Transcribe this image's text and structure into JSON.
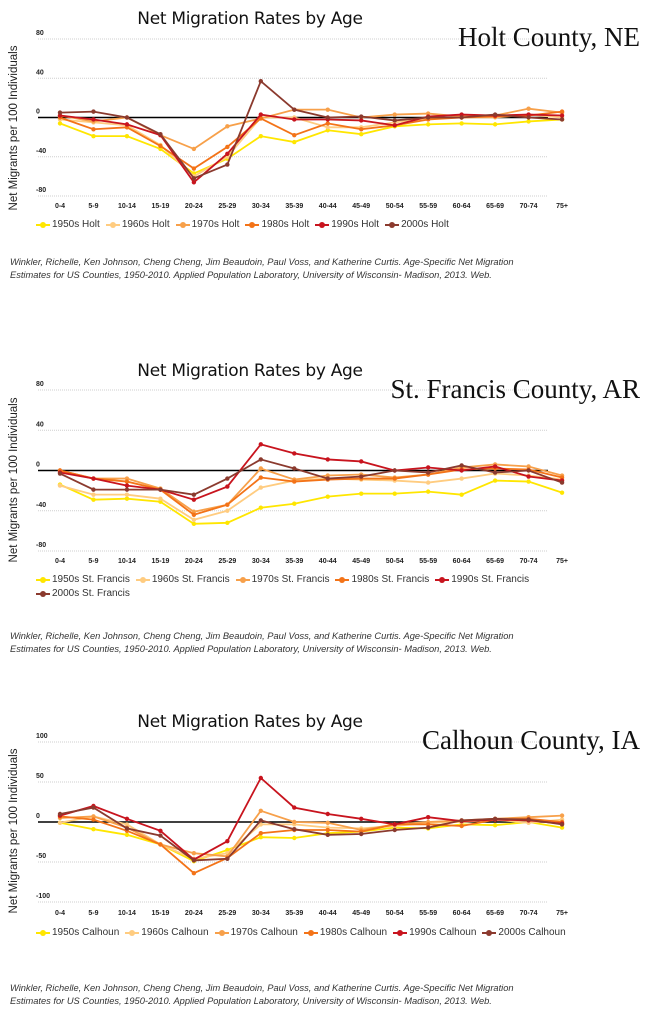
{
  "chart_data": [
    {
      "type": "line",
      "title": "Net Migration Rates by Age",
      "annotation": "Holt County, NE",
      "ylabel": "Net Migrants per 100 Individuals",
      "xlabel": "",
      "ylim": [
        -80,
        80
      ],
      "yticks": [
        "80",
        "40",
        "0",
        "-40",
        "-80"
      ],
      "ytick_values": [
        80,
        40,
        0,
        -40,
        -80
      ],
      "grid": true,
      "legend": "bottom",
      "categories": [
        "0-4",
        "5-9",
        "10-14",
        "15-19",
        "20-24",
        "25-29",
        "30-34",
        "35-39",
        "40-44",
        "45-49",
        "50-54",
        "55-59",
        "60-64",
        "65-69",
        "70-74",
        "75+"
      ],
      "series": [
        {
          "name": "1950s Holt",
          "color": "#ffe600",
          "values": [
            -6,
            -19,
            -19,
            -32,
            -57,
            -42,
            -19,
            -25,
            -13,
            -17,
            -9,
            -7,
            -6,
            -7,
            -4,
            -2
          ]
        },
        {
          "name": "1960s Holt",
          "color": "#ffcc80",
          "values": [
            -2,
            -5,
            -8,
            -28,
            -60,
            -40,
            0,
            0,
            -10,
            -10,
            -5,
            -1,
            0,
            0,
            3,
            0
          ]
        },
        {
          "name": "1970s Holt",
          "color": "#f7a04a",
          "values": [
            2,
            -4,
            0,
            -18,
            -32,
            -9,
            -1,
            8,
            8,
            0,
            3,
            4,
            1,
            2,
            9,
            5
          ]
        },
        {
          "name": "1980s Holt",
          "color": "#f37318",
          "values": [
            0,
            -12,
            -10,
            -29,
            -52,
            -30,
            -1,
            -18,
            -6,
            -12,
            -8,
            -2,
            0,
            1,
            2,
            6
          ]
        },
        {
          "name": "1990s Holt",
          "color": "#c8141e",
          "values": [
            2,
            -2,
            -7,
            -18,
            -66,
            -37,
            3,
            -2,
            -2,
            -3,
            -8,
            1,
            3,
            2,
            3,
            2
          ]
        },
        {
          "name": "2000s Holt",
          "color": "#8b3a2e",
          "values": [
            5,
            6,
            0,
            -17,
            -62,
            -48,
            37,
            8,
            0,
            1,
            -3,
            0,
            0,
            3,
            0,
            -2
          ]
        }
      ],
      "citation": [
        "Winkler, Richelle, Ken Johnson, Cheng Cheng, Jim Beaudoin, Paul Voss, and Katherine Curtis. Age-Specific Net Migration",
        "Estimates for US Counties, 1950-2010. Applied Population Laboratory, University of Wisconsin- Madison, 2013. Web."
      ]
    },
    {
      "type": "line",
      "title": "Net Migration Rates by Age",
      "annotation": "St. Francis County, AR",
      "ylabel": "Net Migrants per 100 Individuals",
      "xlabel": "",
      "ylim": [
        -80,
        80
      ],
      "yticks": [
        "80",
        "40",
        "0",
        "-40",
        "-80"
      ],
      "ytick_values": [
        80,
        40,
        0,
        -40,
        -80
      ],
      "grid": true,
      "legend": "bottom",
      "categories": [
        "0-4",
        "5-9",
        "10-14",
        "15-19",
        "20-24",
        "25-29",
        "30-34",
        "35-39",
        "40-44",
        "45-49",
        "50-54",
        "55-59",
        "60-64",
        "65-69",
        "70-74",
        "75+"
      ],
      "series": [
        {
          "name": "1950s St. Francis",
          "color": "#ffe600",
          "values": [
            -14,
            -29,
            -28,
            -31,
            -53,
            -52,
            -37,
            -33,
            -26,
            -23,
            -23,
            -21,
            -24,
            -10,
            -11,
            -22
          ]
        },
        {
          "name": "1960s St. Francis",
          "color": "#ffcc80",
          "values": [
            -15,
            -24,
            -24,
            -28,
            -49,
            -40,
            -17,
            -10,
            -8,
            -9,
            -10,
            -12,
            -8,
            -3,
            -5,
            -9
          ]
        },
        {
          "name": "1970s St. Francis",
          "color": "#f7a04a",
          "values": [
            0,
            -8,
            -8,
            -18,
            -41,
            -34,
            2,
            -9,
            -5,
            -4,
            -7,
            -4,
            3,
            6,
            4,
            -5
          ]
        },
        {
          "name": "1980s St. Francis",
          "color": "#f37318",
          "values": [
            0,
            -8,
            -11,
            -19,
            -44,
            -34,
            -7,
            -11,
            -9,
            -8,
            -8,
            -4,
            1,
            2,
            1,
            -7
          ]
        },
        {
          "name": "1990s St. Francis",
          "color": "#c8141e",
          "values": [
            -2,
            -8,
            -15,
            -19,
            -29,
            -16,
            26,
            17,
            11,
            9,
            0,
            3,
            0,
            4,
            -6,
            -10
          ]
        },
        {
          "name": "2000s St. Francis",
          "color": "#8b3a2e",
          "values": [
            -3,
            -19,
            -19,
            -19,
            -24,
            -8,
            11,
            2,
            -8,
            -6,
            0,
            -2,
            5,
            -2,
            0,
            -12
          ]
        }
      ],
      "citation": [
        "Winkler, Richelle, Ken Johnson, Cheng Cheng, Jim Beaudoin, Paul Voss, and Katherine Curtis. Age-Specific Net Migration",
        "Estimates for US Counties, 1950-2010. Applied Population Laboratory, University of Wisconsin- Madison, 2013. Web."
      ]
    },
    {
      "type": "line",
      "title": "Net Migration Rates by Age",
      "annotation": "Calhoun County, IA",
      "ylabel": "Net Migrants per 100 Individuals",
      "xlabel": "",
      "ylim": [
        -100,
        100
      ],
      "yticks": [
        "100",
        "50",
        "0",
        "-50",
        "-100"
      ],
      "ytick_values": [
        100,
        50,
        0,
        -50,
        -100
      ],
      "grid": true,
      "legend": "bottom",
      "categories": [
        "0-4",
        "5-9",
        "10-14",
        "15-19",
        "20-24",
        "25-29",
        "30-34",
        "35-39",
        "40-44",
        "45-49",
        "50-54",
        "55-59",
        "60-64",
        "65-69",
        "70-74",
        "75+"
      ],
      "series": [
        {
          "name": "1950s Calhoun",
          "color": "#ffe600",
          "values": [
            -1,
            -9,
            -16,
            -28,
            -49,
            -35,
            -19,
            -20,
            -14,
            -12,
            -7,
            -8,
            -3,
            -4,
            0,
            -7
          ]
        },
        {
          "name": "1960s Calhoun",
          "color": "#ffcc80",
          "values": [
            -1,
            7,
            -3,
            -28,
            -46,
            -39,
            -3,
            -3,
            -7,
            -8,
            -5,
            -1,
            0,
            3,
            -1,
            3
          ]
        },
        {
          "name": "1970s Calhoun",
          "color": "#f7a04a",
          "values": [
            5,
            7,
            -7,
            -28,
            -39,
            -43,
            14,
            0,
            -1,
            -10,
            -3,
            0,
            2,
            4,
            6,
            8
          ]
        },
        {
          "name": "1980s Calhoun",
          "color": "#f37318",
          "values": [
            7,
            3,
            -11,
            -28,
            -64,
            -45,
            -14,
            -10,
            -10,
            -12,
            -3,
            -3,
            -5,
            3,
            4,
            0
          ]
        },
        {
          "name": "1990s Calhoun",
          "color": "#c8141e",
          "values": [
            8,
            20,
            4,
            -11,
            -47,
            -24,
            55,
            18,
            10,
            4,
            -3,
            6,
            1,
            3,
            2,
            -2
          ]
        },
        {
          "name": "2000s Calhoun",
          "color": "#8b3a2e",
          "values": [
            10,
            18,
            -8,
            -17,
            -48,
            -46,
            2,
            -9,
            -16,
            -15,
            -10,
            -7,
            2,
            4,
            3,
            -3
          ]
        }
      ],
      "citation": [
        "Winkler, Richelle, Ken Johnson, Cheng Cheng, Jim Beaudoin, Paul Voss, and Katherine Curtis. Age-Specific Net Migration",
        "Estimates for US Counties, 1950-2010. Applied Population Laboratory, University of Wisconsin- Madison, 2013. Web."
      ]
    }
  ]
}
